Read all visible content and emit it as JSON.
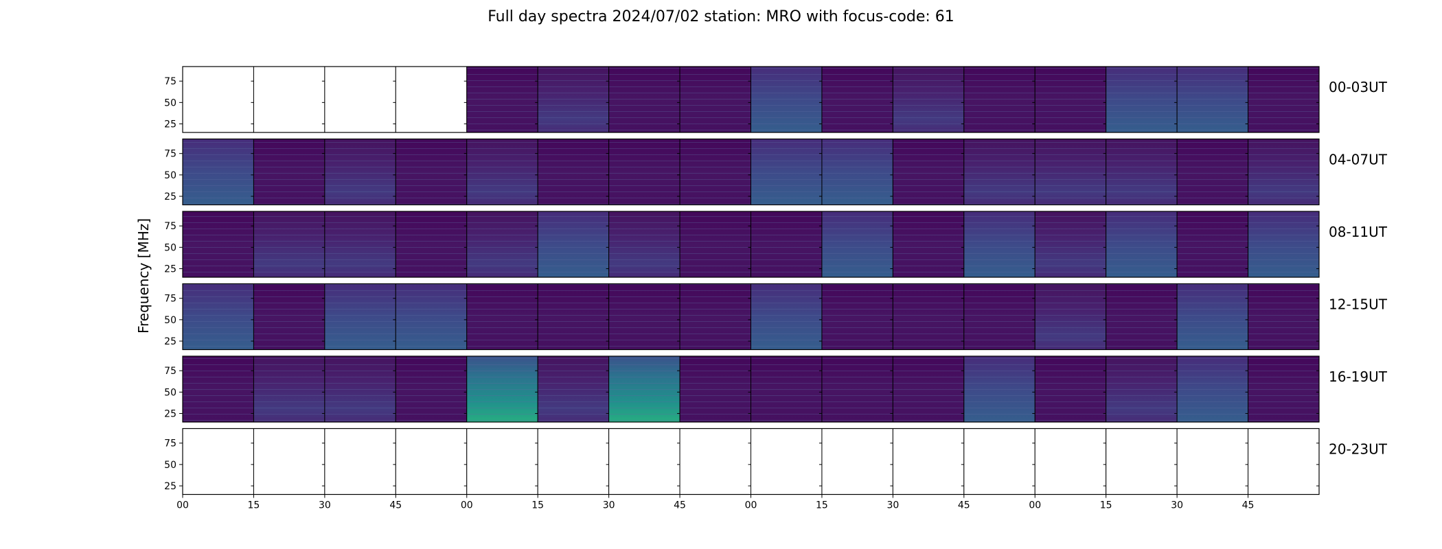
{
  "chart_data": {
    "type": "heatmap",
    "title": "Full day spectra 2024/07/02 station: MRO with focus-code: 61",
    "ylabel": "Frequency [MHz]",
    "xlabel": "",
    "y_ticks": [
      25,
      50,
      75
    ],
    "ylim": [
      15,
      92
    ],
    "x_tick_labels": [
      "00",
      "15",
      "30",
      "45",
      "00",
      "15",
      "30",
      "45",
      "00",
      "15",
      "30",
      "45",
      "00",
      "15",
      "30",
      "45"
    ],
    "rows": [
      {
        "label": "00-03UT",
        "panels": [
          0,
          0,
          0,
          0,
          1,
          2,
          1,
          1,
          3,
          1,
          2,
          1,
          1,
          3,
          3,
          1
        ]
      },
      {
        "label": "04-07UT",
        "panels": [
          3,
          1,
          2,
          1,
          2,
          1,
          1,
          1,
          3,
          3,
          1,
          2,
          2,
          2,
          1,
          2
        ]
      },
      {
        "label": "08-11UT",
        "panels": [
          1,
          2,
          2,
          1,
          2,
          3,
          2,
          1,
          1,
          3,
          1,
          3,
          2,
          3,
          1,
          3
        ]
      },
      {
        "label": "12-15UT",
        "panels": [
          3,
          1,
          3,
          3,
          1,
          1,
          1,
          1,
          3,
          1,
          1,
          1,
          2,
          1,
          3,
          1
        ]
      },
      {
        "label": "16-19UT",
        "panels": [
          1,
          2,
          2,
          1,
          4,
          2,
          4,
          1,
          1,
          1,
          1,
          3,
          1,
          2,
          3,
          1
        ]
      },
      {
        "label": "20-23UT",
        "panels": [
          0,
          0,
          0,
          0,
          0,
          0,
          0,
          0,
          0,
          0,
          0,
          0,
          0,
          0,
          0,
          0
        ]
      }
    ],
    "colormap": "viridis",
    "grid": false
  },
  "colors": {
    "background_dark": "#440154",
    "mid_purple": "#482878",
    "blue": "#3e4a89",
    "teal": "#26828e",
    "green": "#35b779"
  }
}
